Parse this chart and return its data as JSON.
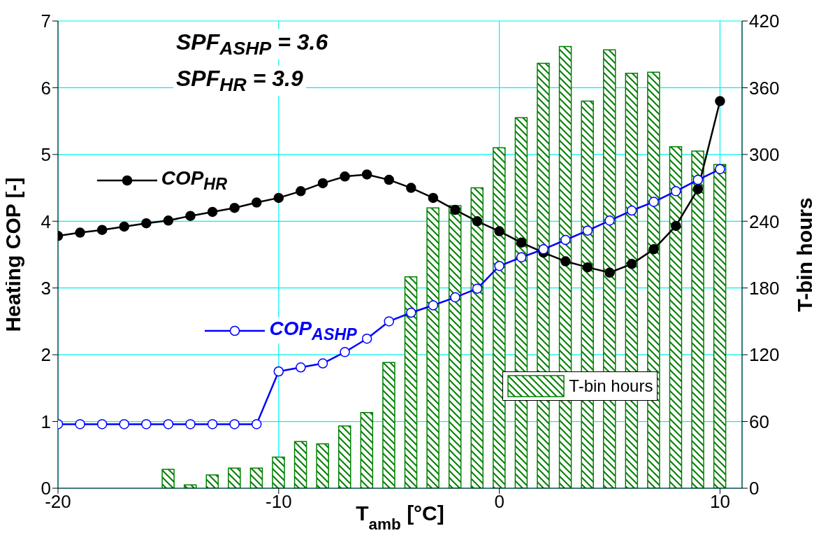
{
  "chart_data": {
    "type": "line",
    "xlabel": "T$_{amb}$ [°C]",
    "ylabel": "Heating COP [-]",
    "y2label": "T-bin hours",
    "xlim": [
      -20,
      11
    ],
    "xticks": [
      -20,
      -10,
      0,
      10
    ],
    "ylim": [
      0,
      7
    ],
    "yticks": [
      0,
      1,
      2,
      3,
      4,
      5,
      6,
      7
    ],
    "y2lim": [
      0,
      420
    ],
    "y2ticks": [
      0,
      60,
      120,
      180,
      240,
      300,
      360,
      420
    ],
    "grid": true,
    "legend": "bottom right",
    "marker": "circle",
    "annotations": [
      "SPF$_{ASHP}$ = 3.6",
      "SPF$_{HR}$ = 3.9"
    ],
    "series": [
      {
        "name": "T-bin hours",
        "type": "bar",
        "axis": "y2",
        "color": "#008000",
        "x": [
          -15,
          -14,
          -13,
          -12,
          -11,
          -10,
          -9,
          -8,
          -7,
          -6,
          -5,
          -4,
          -3,
          -2,
          -1,
          0,
          1,
          2,
          3,
          4,
          5,
          6,
          7,
          8,
          9,
          10
        ],
        "values": [
          17,
          3,
          12,
          18,
          18,
          28,
          42,
          40,
          56,
          68,
          113,
          190,
          252,
          254,
          270,
          306,
          333,
          382,
          397,
          348,
          394,
          373,
          374,
          307,
          303,
          291
        ]
      },
      {
        "name": "COP$_{HR}$",
        "color": "#000000",
        "x": [
          -20,
          -19,
          -18,
          -17,
          -16,
          -15,
          -14,
          -13,
          -12,
          -11,
          -10,
          -9,
          -8,
          -7,
          -6,
          -5,
          -4,
          -3,
          -2,
          -1,
          0,
          1,
          2,
          3,
          4,
          5,
          6,
          7,
          8,
          9,
          10
        ],
        "values": [
          3.78,
          3.83,
          3.87,
          3.92,
          3.97,
          4.01,
          4.08,
          4.14,
          4.2,
          4.28,
          4.35,
          4.45,
          4.57,
          4.67,
          4.7,
          4.62,
          4.5,
          4.35,
          4.17,
          4.0,
          3.85,
          3.68,
          3.53,
          3.4,
          3.31,
          3.23,
          3.36,
          3.58,
          3.93,
          4.48,
          5.8
        ]
      },
      {
        "name": "COP$_{ASHP}$",
        "color": "#0000ff",
        "x": [
          -20,
          -19,
          -18,
          -17,
          -16,
          -15,
          -14,
          -13,
          -12,
          -11,
          -10,
          -9,
          -8,
          -7,
          -6,
          -5,
          -4,
          -3,
          -2,
          -1,
          0,
          1,
          2,
          3,
          4,
          5,
          6,
          7,
          8,
          9,
          10
        ],
        "values": [
          0.96,
          0.96,
          0.96,
          0.96,
          0.96,
          0.96,
          0.96,
          0.96,
          0.96,
          0.96,
          1.75,
          1.81,
          1.87,
          2.04,
          2.24,
          2.5,
          2.63,
          2.74,
          2.86,
          2.99,
          3.33,
          3.46,
          3.58,
          3.72,
          3.86,
          4.01,
          4.16,
          4.29,
          4.45,
          4.62,
          4.78
        ]
      }
    ]
  }
}
